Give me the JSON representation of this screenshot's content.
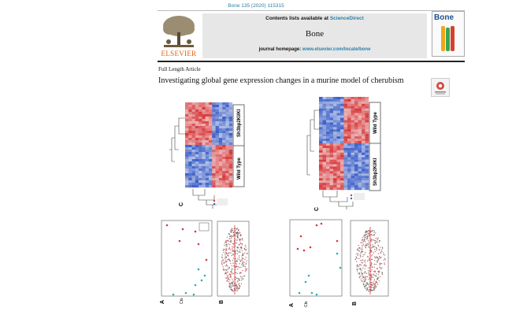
{
  "header": {
    "citation": "Bone 135 (2020) 115315",
    "publisher_wordmark": "ELSEVIER",
    "contents_prefix": "Contents lists available at ",
    "contents_link": "ScienceDirect",
    "journal_name": "Bone",
    "homepage_prefix": "journal homepage: ",
    "homepage_url": "www.elsevier.com/locate/bone",
    "cover_title": "Bone"
  },
  "article": {
    "type": "Full Length Article",
    "title": "Investigating global gene expression changes in a murine model of cherubism"
  },
  "figures": {
    "heatmap_labels": [
      "Sh3bp2KI/KI",
      "Wild Type",
      "Wild Type",
      "Sh3bp2KI/KI"
    ],
    "panel_letters": [
      "C",
      "C",
      "A",
      "B",
      "A",
      "B"
    ],
    "axis_labels": [
      "Cts",
      "Cts"
    ],
    "colors": {
      "red": "#d9383a",
      "blue": "#3b5fc9",
      "white": "#f4f4f4",
      "teal": "#2bb0b3"
    }
  }
}
